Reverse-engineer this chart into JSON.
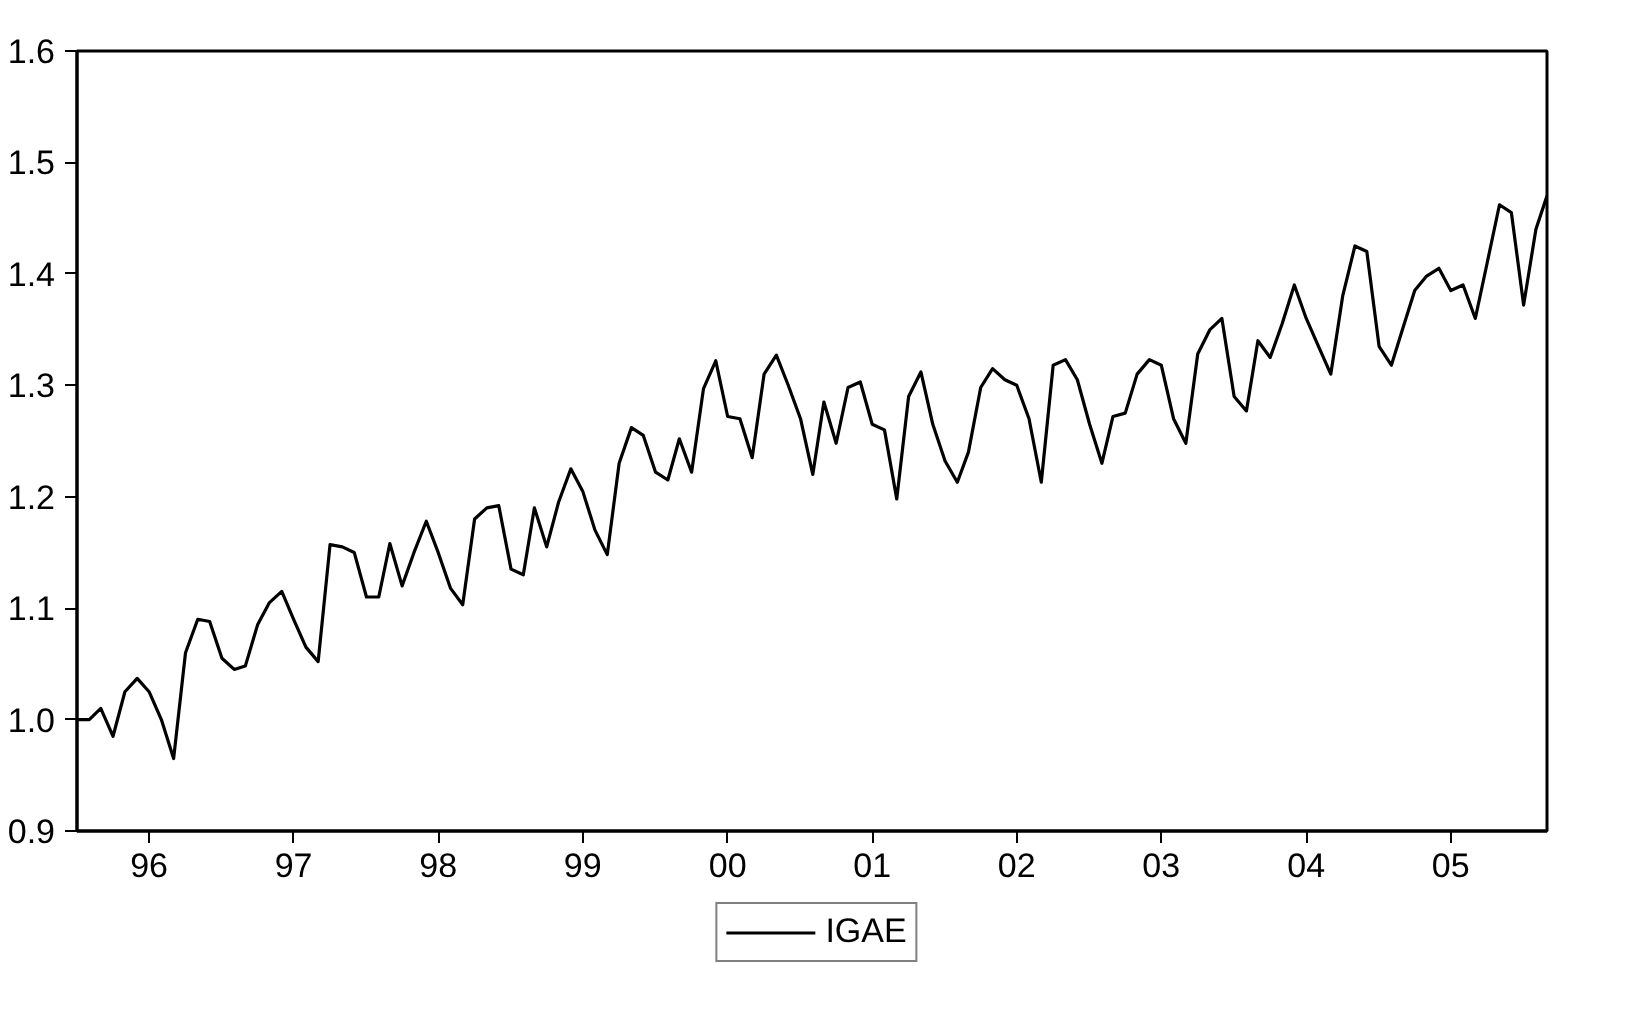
{
  "chart_data": {
    "type": "line",
    "xlim": [
      "1996-01",
      "2006-03"
    ],
    "ylim": [
      0.9,
      1.6
    ],
    "yticks": [
      0.9,
      {
        "value": 1,
        "label": "1.0"
      },
      1.1,
      1.2,
      1.3,
      1.4,
      1.5,
      1.6
    ],
    "xticks": [
      {
        "value": "1996-07",
        "label": "96"
      },
      {
        "value": "1997-07",
        "label": "97"
      },
      {
        "value": "1998-07",
        "label": "98"
      },
      {
        "value": "1999-07",
        "label": "99"
      },
      {
        "value": "2000-07",
        "label": "00"
      },
      {
        "value": "2001-07",
        "label": "01"
      },
      {
        "value": "2002-07",
        "label": "02"
      },
      {
        "value": "2003-07",
        "label": "03"
      },
      {
        "value": "2004-07",
        "label": "04"
      },
      {
        "value": "2005-07",
        "label": "05"
      }
    ],
    "x": [
      "1996-01",
      "1996-02",
      "1996-03",
      "1996-04",
      "1996-05",
      "1996-06",
      "1996-07",
      "1996-08",
      "1996-09",
      "1996-10",
      "1996-11",
      "1996-12",
      "1997-01",
      "1997-02",
      "1997-03",
      "1997-04",
      "1997-05",
      "1997-06",
      "1997-07",
      "1997-08",
      "1997-09",
      "1997-10",
      "1997-11",
      "1997-12",
      "1998-01",
      "1998-02",
      "1998-03",
      "1998-04",
      "1998-05",
      "1998-06",
      "1998-07",
      "1998-08",
      "1998-09",
      "1998-10",
      "1998-11",
      "1998-12",
      "1999-01",
      "1999-02",
      "1999-03",
      "1999-04",
      "1999-05",
      "1999-06",
      "1999-07",
      "1999-08",
      "1999-09",
      "1999-10",
      "1999-11",
      "1999-12",
      "2000-01",
      "2000-02",
      "2000-03",
      "2000-04",
      "2000-05",
      "2000-06",
      "2000-07",
      "2000-08",
      "2000-09",
      "2000-10",
      "2000-11",
      "2000-12",
      "2001-01",
      "2001-02",
      "2001-03",
      "2001-04",
      "2001-05",
      "2001-06",
      "2001-07",
      "2001-08",
      "2001-09",
      "2001-10",
      "2001-11",
      "2001-12",
      "2002-01",
      "2002-02",
      "2002-03",
      "2002-04",
      "2002-05",
      "2002-06",
      "2002-07",
      "2002-08",
      "2002-09",
      "2002-10",
      "2002-11",
      "2002-12",
      "2003-01",
      "2003-02",
      "2003-03",
      "2003-04",
      "2003-05",
      "2003-06",
      "2003-07",
      "2003-08",
      "2003-09",
      "2003-10",
      "2003-11",
      "2003-12",
      "2004-01",
      "2004-02",
      "2004-03",
      "2004-04",
      "2004-05",
      "2004-06",
      "2004-07",
      "2004-08",
      "2004-09",
      "2004-10",
      "2004-11",
      "2004-12",
      "2005-01",
      "2005-02",
      "2005-03",
      "2005-04",
      "2005-05",
      "2005-06",
      "2005-07",
      "2005-08",
      "2005-09",
      "2005-10",
      "2005-11",
      "2005-12",
      "2006-01",
      "2006-02",
      "2006-03"
    ],
    "legend": "bottom",
    "line_style": "solid",
    "series": [
      {
        "name": "IGAE",
        "color": "#000000",
        "values": [
          1.0,
          1.0,
          1.01,
          0.985,
          1.025,
          1.037,
          1.025,
          1.0,
          0.965,
          1.06,
          1.09,
          1.088,
          1.055,
          1.045,
          1.048,
          1.085,
          1.105,
          1.115,
          1.09,
          1.065,
          1.052,
          1.157,
          1.155,
          1.15,
          1.11,
          1.11,
          1.158,
          1.12,
          1.15,
          1.178,
          1.15,
          1.118,
          1.103,
          1.18,
          1.19,
          1.192,
          1.135,
          1.13,
          1.19,
          1.155,
          1.195,
          1.225,
          1.205,
          1.17,
          1.148,
          1.23,
          1.262,
          1.255,
          1.222,
          1.215,
          1.252,
          1.222,
          1.297,
          1.322,
          1.272,
          1.27,
          1.235,
          1.31,
          1.327,
          1.3,
          1.27,
          1.22,
          1.285,
          1.248,
          1.298,
          1.303,
          1.265,
          1.26,
          1.198,
          1.29,
          1.312,
          1.265,
          1.232,
          1.213,
          1.24,
          1.298,
          1.315,
          1.305,
          1.3,
          1.27,
          1.213,
          1.318,
          1.323,
          1.305,
          1.265,
          1.23,
          1.272,
          1.275,
          1.31,
          1.323,
          1.318,
          1.27,
          1.248,
          1.328,
          1.35,
          1.36,
          1.29,
          1.277,
          1.34,
          1.325,
          1.355,
          1.39,
          1.36,
          1.335,
          1.31,
          1.38,
          1.425,
          1.42,
          1.335,
          1.318,
          1.35,
          1.385,
          1.398,
          1.405,
          1.385,
          1.39,
          1.36,
          1.41,
          1.462,
          1.455,
          1.372,
          1.44,
          1.47
        ]
      }
    ]
  }
}
